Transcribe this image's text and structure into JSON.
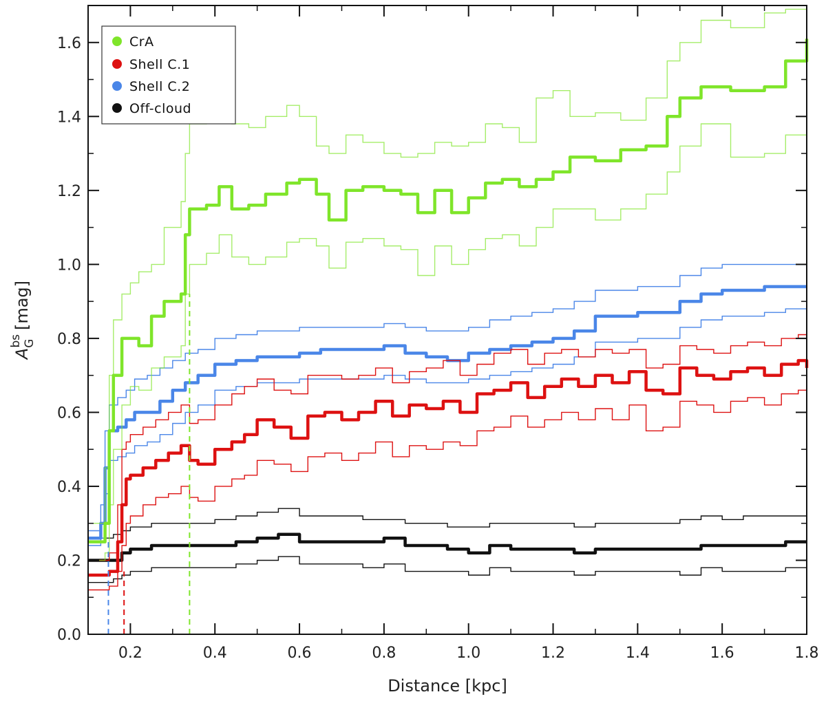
{
  "chart_data": {
    "type": "line",
    "xlabel": "Distance [kpc]",
    "ylabel": {
      "base": "A",
      "sup": "bs",
      "sub": "G",
      "unit": "[mag]"
    },
    "xlim": [
      0.1,
      1.8
    ],
    "ylim": [
      0.0,
      1.7
    ],
    "x_ticks": [
      "0.2",
      "0.4",
      "0.6",
      "0.8",
      "1.0",
      "1.2",
      "1.4",
      "1.6",
      "1.8"
    ],
    "y_ticks": [
      "0.0",
      "0.2",
      "0.4",
      "0.6",
      "0.8",
      "1.0",
      "1.2",
      "1.4",
      "1.6"
    ],
    "grid": false,
    "legend_position": "top-left",
    "series": [
      {
        "name": "CrA",
        "color": "#7fe52a",
        "x": [
          0.1,
          0.14,
          0.15,
          0.16,
          0.18,
          0.2,
          0.22,
          0.25,
          0.28,
          0.32,
          0.33,
          0.34,
          0.38,
          0.41,
          0.44,
          0.48,
          0.52,
          0.57,
          0.6,
          0.64,
          0.67,
          0.71,
          0.75,
          0.8,
          0.84,
          0.88,
          0.92,
          0.96,
          1.0,
          1.04,
          1.08,
          1.12,
          1.16,
          1.2,
          1.24,
          1.3,
          1.36,
          1.42,
          1.47,
          1.5,
          1.55,
          1.62,
          1.7,
          1.75,
          1.8
        ],
        "value": [
          0.25,
          0.3,
          0.55,
          0.7,
          0.8,
          0.8,
          0.78,
          0.86,
          0.9,
          0.92,
          1.08,
          1.15,
          1.16,
          1.21,
          1.15,
          1.16,
          1.19,
          1.22,
          1.23,
          1.19,
          1.12,
          1.2,
          1.21,
          1.2,
          1.19,
          1.14,
          1.2,
          1.14,
          1.18,
          1.22,
          1.23,
          1.21,
          1.23,
          1.25,
          1.29,
          1.28,
          1.31,
          1.32,
          1.4,
          1.45,
          1.48,
          1.47,
          1.48,
          1.55,
          1.61
        ],
        "upper": [
          0.3,
          0.45,
          0.7,
          0.85,
          0.92,
          0.95,
          0.98,
          1.0,
          1.1,
          1.17,
          1.3,
          1.38,
          1.4,
          1.41,
          1.38,
          1.37,
          1.4,
          1.43,
          1.4,
          1.32,
          1.3,
          1.35,
          1.33,
          1.3,
          1.29,
          1.3,
          1.33,
          1.32,
          1.33,
          1.38,
          1.37,
          1.33,
          1.45,
          1.47,
          1.4,
          1.41,
          1.39,
          1.45,
          1.55,
          1.6,
          1.66,
          1.64,
          1.68,
          1.69,
          1.7
        ],
        "lower": [
          0.2,
          0.22,
          0.35,
          0.5,
          0.62,
          0.67,
          0.66,
          0.72,
          0.75,
          0.78,
          0.92,
          1.0,
          1.03,
          1.08,
          1.02,
          1.0,
          1.02,
          1.06,
          1.07,
          1.05,
          0.99,
          1.06,
          1.07,
          1.05,
          1.04,
          0.97,
          1.05,
          1.0,
          1.04,
          1.07,
          1.08,
          1.05,
          1.1,
          1.15,
          1.15,
          1.12,
          1.15,
          1.19,
          1.25,
          1.32,
          1.38,
          1.29,
          1.3,
          1.35,
          1.48
        ]
      },
      {
        "name": "Shell C.1",
        "color": "#dd1111",
        "x": [
          0.1,
          0.15,
          0.17,
          0.18,
          0.19,
          0.2,
          0.23,
          0.26,
          0.29,
          0.32,
          0.34,
          0.36,
          0.4,
          0.44,
          0.47,
          0.5,
          0.54,
          0.58,
          0.62,
          0.66,
          0.7,
          0.74,
          0.78,
          0.82,
          0.86,
          0.9,
          0.94,
          0.98,
          1.02,
          1.06,
          1.1,
          1.14,
          1.18,
          1.22,
          1.26,
          1.3,
          1.34,
          1.38,
          1.42,
          1.46,
          1.5,
          1.54,
          1.58,
          1.62,
          1.66,
          1.7,
          1.74,
          1.78,
          1.8
        ],
        "value": [
          0.16,
          0.17,
          0.25,
          0.35,
          0.42,
          0.43,
          0.45,
          0.47,
          0.49,
          0.51,
          0.47,
          0.46,
          0.5,
          0.52,
          0.54,
          0.58,
          0.56,
          0.53,
          0.59,
          0.6,
          0.58,
          0.6,
          0.63,
          0.59,
          0.62,
          0.61,
          0.63,
          0.6,
          0.65,
          0.66,
          0.68,
          0.64,
          0.67,
          0.69,
          0.67,
          0.7,
          0.68,
          0.71,
          0.66,
          0.65,
          0.72,
          0.7,
          0.69,
          0.71,
          0.72,
          0.7,
          0.73,
          0.74,
          0.72
        ],
        "upper": [
          0.2,
          0.22,
          0.35,
          0.5,
          0.52,
          0.54,
          0.56,
          0.58,
          0.6,
          0.62,
          0.57,
          0.58,
          0.62,
          0.65,
          0.67,
          0.69,
          0.66,
          0.65,
          0.7,
          0.7,
          0.69,
          0.7,
          0.72,
          0.68,
          0.71,
          0.72,
          0.74,
          0.7,
          0.73,
          0.76,
          0.77,
          0.73,
          0.76,
          0.77,
          0.75,
          0.77,
          0.76,
          0.77,
          0.72,
          0.73,
          0.78,
          0.77,
          0.76,
          0.78,
          0.79,
          0.78,
          0.8,
          0.81,
          0.8
        ],
        "lower": [
          0.12,
          0.13,
          0.17,
          0.24,
          0.3,
          0.32,
          0.35,
          0.37,
          0.38,
          0.4,
          0.37,
          0.36,
          0.4,
          0.42,
          0.43,
          0.47,
          0.46,
          0.44,
          0.48,
          0.49,
          0.47,
          0.49,
          0.52,
          0.48,
          0.51,
          0.5,
          0.52,
          0.51,
          0.55,
          0.56,
          0.59,
          0.56,
          0.58,
          0.6,
          0.58,
          0.61,
          0.58,
          0.62,
          0.55,
          0.56,
          0.63,
          0.62,
          0.6,
          0.63,
          0.64,
          0.62,
          0.65,
          0.66,
          0.65
        ]
      },
      {
        "name": "Shell C.2",
        "color": "#4a86e8",
        "x": [
          0.1,
          0.13,
          0.14,
          0.15,
          0.17,
          0.19,
          0.21,
          0.24,
          0.27,
          0.3,
          0.33,
          0.36,
          0.4,
          0.45,
          0.5,
          0.55,
          0.6,
          0.65,
          0.7,
          0.75,
          0.8,
          0.85,
          0.9,
          0.95,
          1.0,
          1.05,
          1.1,
          1.15,
          1.2,
          1.25,
          1.3,
          1.35,
          1.4,
          1.45,
          1.5,
          1.55,
          1.6,
          1.65,
          1.7,
          1.75,
          1.8
        ],
        "value": [
          0.26,
          0.3,
          0.45,
          0.55,
          0.56,
          0.58,
          0.6,
          0.6,
          0.63,
          0.66,
          0.68,
          0.7,
          0.73,
          0.74,
          0.75,
          0.75,
          0.76,
          0.77,
          0.77,
          0.77,
          0.78,
          0.76,
          0.75,
          0.74,
          0.76,
          0.77,
          0.78,
          0.79,
          0.8,
          0.82,
          0.86,
          0.86,
          0.87,
          0.87,
          0.9,
          0.92,
          0.93,
          0.93,
          0.94,
          0.94,
          0.94
        ],
        "upper": [
          0.28,
          0.35,
          0.55,
          0.62,
          0.64,
          0.66,
          0.69,
          0.7,
          0.72,
          0.74,
          0.76,
          0.77,
          0.8,
          0.81,
          0.82,
          0.82,
          0.83,
          0.83,
          0.83,
          0.83,
          0.84,
          0.83,
          0.82,
          0.82,
          0.83,
          0.85,
          0.86,
          0.87,
          0.88,
          0.9,
          0.93,
          0.93,
          0.94,
          0.94,
          0.97,
          0.99,
          1.0,
          1.0,
          1.0,
          1.0,
          1.0
        ],
        "lower": [
          0.24,
          0.26,
          0.38,
          0.47,
          0.48,
          0.49,
          0.51,
          0.52,
          0.54,
          0.57,
          0.6,
          0.62,
          0.66,
          0.67,
          0.68,
          0.68,
          0.69,
          0.69,
          0.69,
          0.69,
          0.7,
          0.69,
          0.68,
          0.68,
          0.69,
          0.7,
          0.71,
          0.72,
          0.73,
          0.75,
          0.79,
          0.79,
          0.8,
          0.8,
          0.83,
          0.85,
          0.86,
          0.86,
          0.87,
          0.88,
          0.88
        ]
      },
      {
        "name": "Off-cloud",
        "color": "#111111",
        "x": [
          0.1,
          0.14,
          0.16,
          0.18,
          0.2,
          0.25,
          0.3,
          0.35,
          0.4,
          0.45,
          0.5,
          0.55,
          0.6,
          0.65,
          0.7,
          0.75,
          0.8,
          0.85,
          0.9,
          0.95,
          1.0,
          1.05,
          1.1,
          1.15,
          1.2,
          1.25,
          1.3,
          1.35,
          1.4,
          1.45,
          1.5,
          1.55,
          1.6,
          1.65,
          1.7,
          1.75,
          1.8
        ],
        "value": [
          0.2,
          0.2,
          0.2,
          0.22,
          0.23,
          0.24,
          0.24,
          0.24,
          0.24,
          0.25,
          0.26,
          0.27,
          0.25,
          0.25,
          0.25,
          0.25,
          0.26,
          0.24,
          0.24,
          0.23,
          0.22,
          0.24,
          0.23,
          0.23,
          0.23,
          0.22,
          0.23,
          0.23,
          0.23,
          0.23,
          0.23,
          0.24,
          0.24,
          0.24,
          0.24,
          0.25,
          0.25
        ],
        "upper": [
          0.26,
          0.26,
          0.27,
          0.28,
          0.29,
          0.3,
          0.3,
          0.3,
          0.31,
          0.32,
          0.33,
          0.34,
          0.32,
          0.32,
          0.32,
          0.31,
          0.31,
          0.3,
          0.3,
          0.29,
          0.29,
          0.3,
          0.3,
          0.3,
          0.3,
          0.29,
          0.3,
          0.3,
          0.3,
          0.3,
          0.31,
          0.32,
          0.31,
          0.32,
          0.32,
          0.32,
          0.32
        ],
        "lower": [
          0.14,
          0.14,
          0.15,
          0.16,
          0.17,
          0.18,
          0.18,
          0.18,
          0.18,
          0.19,
          0.2,
          0.21,
          0.19,
          0.19,
          0.19,
          0.18,
          0.19,
          0.17,
          0.17,
          0.17,
          0.16,
          0.18,
          0.17,
          0.17,
          0.17,
          0.16,
          0.17,
          0.17,
          0.17,
          0.17,
          0.16,
          0.18,
          0.17,
          0.17,
          0.17,
          0.18,
          0.18
        ]
      }
    ],
    "vertical_markers": [
      {
        "series": "CrA",
        "x": 0.34,
        "top": 0.92,
        "color": "#7fe52a"
      },
      {
        "series": "Shell C.1",
        "x": 0.185,
        "top": 0.17,
        "color": "#dd1111"
      },
      {
        "series": "Shell C.2",
        "x": 0.148,
        "top": 0.26,
        "color": "#4a86e8"
      }
    ]
  }
}
